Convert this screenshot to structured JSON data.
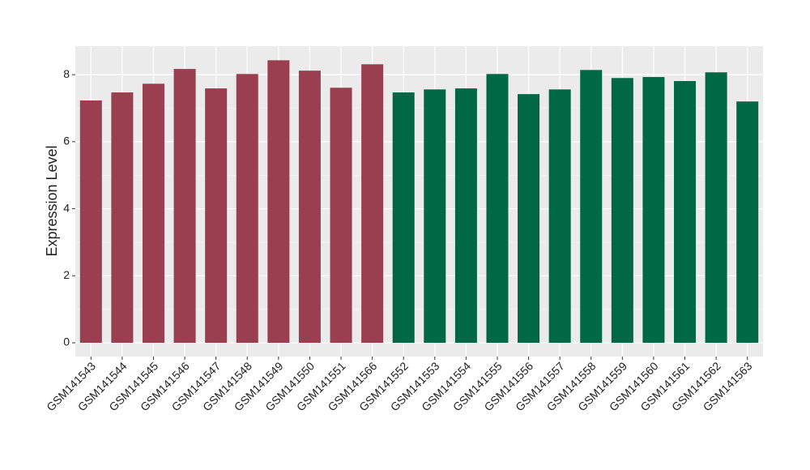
{
  "chart_data": {
    "type": "bar",
    "y_label": "Expression Level",
    "categories": [
      "GSM141543",
      "GSM141544",
      "GSM141545",
      "GSM141546",
      "GSM141547",
      "GSM141548",
      "GSM141549",
      "GSM141550",
      "GSM141551",
      "GSM141566",
      "GSM141552",
      "GSM141553",
      "GSM141554",
      "GSM141555",
      "GSM141556",
      "GSM141557",
      "GSM141558",
      "GSM141559",
      "GSM141560",
      "GSM141561",
      "GSM141562",
      "GSM141563"
    ],
    "values": [
      7.23,
      7.47,
      7.73,
      8.17,
      7.59,
      8.02,
      8.43,
      8.12,
      7.61,
      8.31,
      7.47,
      7.56,
      7.59,
      8.02,
      7.42,
      7.56,
      8.14,
      7.9,
      7.93,
      7.81,
      8.07,
      7.2
    ],
    "colors": [
      "#993f4f",
      "#993f4f",
      "#993f4f",
      "#993f4f",
      "#993f4f",
      "#993f4f",
      "#993f4f",
      "#993f4f",
      "#993f4f",
      "#993f4f",
      "#006845",
      "#006845",
      "#006845",
      "#006845",
      "#006845",
      "#006845",
      "#006845",
      "#006845",
      "#006845",
      "#006845",
      "#006845",
      "#006845"
    ],
    "ylim": [
      -0.41,
      8.85
    ],
    "yticks": [
      0,
      2,
      4,
      6,
      8
    ],
    "grid": true
  }
}
